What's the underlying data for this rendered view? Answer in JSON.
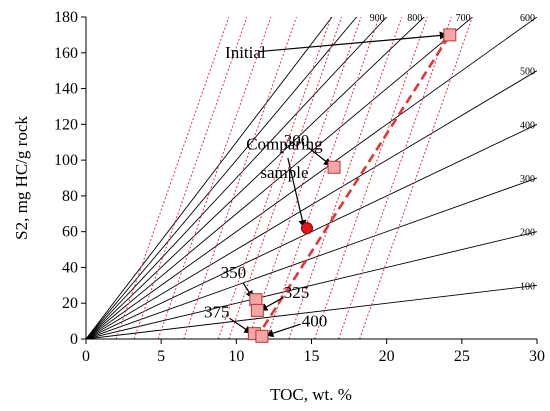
{
  "chart_data": {
    "type": "scatter",
    "title": "",
    "xlabel": "TOC, wt. %",
    "ylabel": "S2, mg HC/g rock",
    "xlim": [
      0,
      30
    ],
    "ylim": [
      0,
      180
    ],
    "xticks": [
      0,
      5,
      10,
      15,
      20,
      25,
      30
    ],
    "yticks": [
      0,
      20,
      40,
      60,
      80,
      100,
      120,
      140,
      160,
      180
    ],
    "grid": false,
    "hydrogen_index_lines": {
      "color": "#000000",
      "values": [
        100,
        200,
        300,
        400,
        500,
        600,
        700,
        800,
        900
      ],
      "labels": [
        "100",
        "200",
        "300",
        "400",
        "500",
        "600",
        "700",
        "800",
        "900"
      ],
      "extra_unlabeled": [
        1000,
        1100
      ]
    },
    "reference_lines": {
      "color": "#e0363b",
      "style": "dotted",
      "slope_S2_per_TOC": 24,
      "x_intercepts": [
        2,
        3.2,
        4.8,
        6.5,
        8.8,
        9.5,
        10.8,
        12,
        13.5,
        15.2,
        16.8,
        18.2
      ]
    },
    "trend_line": {
      "color": "#e0363b",
      "style": "dashed",
      "points": [
        [
          11.3,
          0
        ],
        [
          24.2,
          170
        ]
      ]
    },
    "points": [
      {
        "x": 24.2,
        "y": 170,
        "marker": "square",
        "label": "Initial"
      },
      {
        "x": 16.5,
        "y": 96,
        "marker": "square",
        "label": "300"
      },
      {
        "x": 14.7,
        "y": 62,
        "marker": "circle",
        "label": "Comparing sample"
      },
      {
        "x": 11.3,
        "y": 22,
        "marker": "square",
        "label": "350"
      },
      {
        "x": 11.4,
        "y": 16,
        "marker": "square",
        "label": "325"
      },
      {
        "x": 11.2,
        "y": 3,
        "marker": "square",
        "label": "375"
      },
      {
        "x": 11.7,
        "y": 1.5,
        "marker": "square",
        "label": "400"
      }
    ],
    "colors": {
      "square_fill": "#f4a5a5",
      "square_stroke": "#b03a3a",
      "circle_fill": "#e4161e",
      "circle_stroke": "#8b0000"
    },
    "annotations": [
      {
        "text": "Initial",
        "text_x": 10.6,
        "text_y": 157,
        "arrow_to": [
          24.0,
          170
        ]
      },
      {
        "text": "300",
        "text_x": 14.0,
        "text_y": 108,
        "arrow_to": [
          16.3,
          97
        ]
      },
      {
        "text": "Comparing",
        "text_x": 13.2,
        "text_y": 106,
        "arrow_to": [
          14.5,
          62.5
        ]
      },
      {
        "text": "sample",
        "text_x": 13.2,
        "text_y": 90
      },
      {
        "text": "350",
        "text_x": 9.8,
        "text_y": 34,
        "arrow_to": [
          11.1,
          23
        ]
      },
      {
        "text": "325",
        "text_x": 14.0,
        "text_y": 23,
        "arrow_to": [
          11.6,
          16
        ]
      },
      {
        "text": "375",
        "text_x": 8.7,
        "text_y": 12,
        "arrow_to": [
          11.0,
          3.3
        ]
      },
      {
        "text": "400",
        "text_x": 15.2,
        "text_y": 7,
        "arrow_to": [
          12.0,
          2
        ]
      }
    ]
  }
}
